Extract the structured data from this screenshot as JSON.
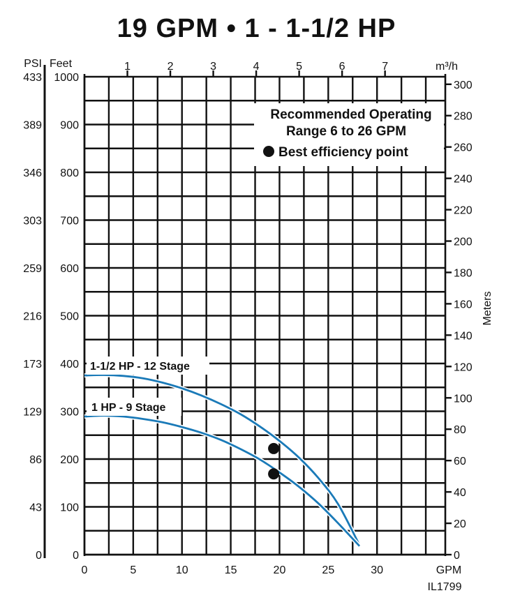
{
  "chart_data": {
    "type": "line",
    "title": "19 GPM • 1 - 1-1/2 HP",
    "xlabel": "GPM",
    "figure_code": "IL1799",
    "xlim": [
      0,
      37
    ],
    "ylim": [
      0,
      1000
    ],
    "x_ticks": [
      0,
      5,
      10,
      15,
      20,
      25,
      30
    ],
    "y_ticks_feet": [
      0,
      100,
      200,
      300,
      400,
      500,
      600,
      700,
      800,
      900,
      1000
    ],
    "left_axis_units": {
      "psi": "PSI",
      "feet": "Feet"
    },
    "psi_labels": [
      "0",
      "43",
      "86",
      "129",
      "173",
      "216",
      "259",
      "303",
      "346",
      "389",
      "433"
    ],
    "top_axis": {
      "label": "m³/h",
      "ticks": [
        1,
        2,
        3,
        4,
        5,
        6,
        7
      ],
      "gpm_per_unit": 4.4029
    },
    "right_axis": {
      "label": "Meters",
      "ticks": [
        0,
        20,
        40,
        60,
        80,
        100,
        120,
        140,
        160,
        180,
        200,
        220,
        240,
        260,
        280,
        300
      ],
      "feet_per_meter": 3.28084
    },
    "legend": {
      "line1": "Recommended Operating",
      "line2": "Range 6 to 26 GPM",
      "bep": "Best efficiency point"
    },
    "series": [
      {
        "name": "1-1/2 HP - 12 Stage",
        "color": "#1a7ab8",
        "x": [
          0,
          2,
          4,
          6,
          8,
          10,
          12,
          14,
          16,
          18,
          20,
          22,
          24,
          26,
          28.2
        ],
        "y": [
          375,
          376,
          374,
          369,
          360,
          348,
          333,
          315,
          294,
          268,
          238,
          203,
          160,
          106,
          20
        ],
        "bep": {
          "x": 19.4,
          "y": 222
        }
      },
      {
        "name": "1 HP - 9 Stage",
        "color": "#1a7ab8",
        "x": [
          0,
          2,
          4,
          6,
          8,
          10,
          12,
          14,
          16,
          18,
          20,
          22,
          24,
          26,
          28.2
        ],
        "y": [
          289,
          291,
          289,
          284,
          277,
          267,
          255,
          240,
          221,
          199,
          172,
          142,
          107,
          66,
          18
        ],
        "bep": {
          "x": 19.4,
          "y": 169
        }
      }
    ]
  }
}
